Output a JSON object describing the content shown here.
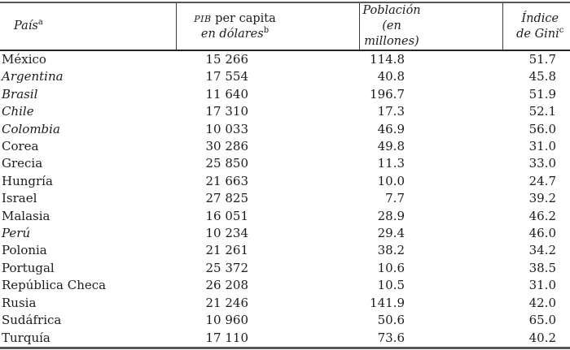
{
  "table": {
    "headers": {
      "country": {
        "label": "País",
        "sup": "a"
      },
      "gdp": {
        "acronym": "PIB",
        "line1_rest": " per capita",
        "line2": "en dólares",
        "sup": "b"
      },
      "population": {
        "line1": "Población",
        "line2": "(en millones)"
      },
      "gini": {
        "line1": "Índice",
        "line2": "de Gini",
        "sup": "c"
      }
    },
    "columns": [
      "País",
      "PIB per capita en dólares",
      "Población (en millones)",
      "Índice de Gini"
    ],
    "rows": [
      {
        "country": "México",
        "italic": false,
        "gdp": "15 266",
        "population": "114.8",
        "gini": "51.7"
      },
      {
        "country": "Argentina",
        "italic": true,
        "gdp": "17 554",
        "population": "40.8",
        "gini": "45.8"
      },
      {
        "country": "Brasil",
        "italic": true,
        "gdp": "11 640",
        "population": "196.7",
        "gini": "51.9"
      },
      {
        "country": "Chile",
        "italic": true,
        "gdp": "17 310",
        "population": "17.3",
        "gini": "52.1"
      },
      {
        "country": "Colombia",
        "italic": true,
        "gdp": "10 033",
        "population": "46.9",
        "gini": "56.0"
      },
      {
        "country": "Corea",
        "italic": false,
        "gdp": "30 286",
        "population": "49.8",
        "gini": "31.0"
      },
      {
        "country": "Grecia",
        "italic": false,
        "gdp": "25 850",
        "population": "11.3",
        "gini": "33.0"
      },
      {
        "country": "Hungría",
        "italic": false,
        "gdp": "21 663",
        "population": "10.0",
        "gini": "24.7"
      },
      {
        "country": "Israel",
        "italic": false,
        "gdp": "27 825",
        "population": "7.7",
        "gini": "39.2"
      },
      {
        "country": "Malasia",
        "italic": false,
        "gdp": "16 051",
        "population": "28.9",
        "gini": "46.2"
      },
      {
        "country": "Perú",
        "italic": true,
        "gdp": "10 234",
        "population": "29.4",
        "gini": "46.0"
      },
      {
        "country": "Polonia",
        "italic": false,
        "gdp": "21 261",
        "population": "38.2",
        "gini": "34.2"
      },
      {
        "country": "Portugal",
        "italic": false,
        "gdp": "25 372",
        "population": "10.6",
        "gini": "38.5"
      },
      {
        "country": "República Checa",
        "italic": false,
        "gdp": "26 208",
        "population": "10.5",
        "gini": "31.0"
      },
      {
        "country": "Rusia",
        "italic": false,
        "gdp": "21 246",
        "population": "141.9",
        "gini": "42.0"
      },
      {
        "country": "Sudáfrica",
        "italic": false,
        "gdp": "10 960",
        "population": "50.6",
        "gini": "65.0"
      },
      {
        "country": "Turquía",
        "italic": false,
        "gdp": "17 110",
        "population": "73.6",
        "gini": "40.2"
      }
    ]
  },
  "colors": {
    "text": "#1c1c1c",
    "rule_top": "#58585a",
    "rule_header": "#242424",
    "rule_bottom": "#55555a"
  }
}
